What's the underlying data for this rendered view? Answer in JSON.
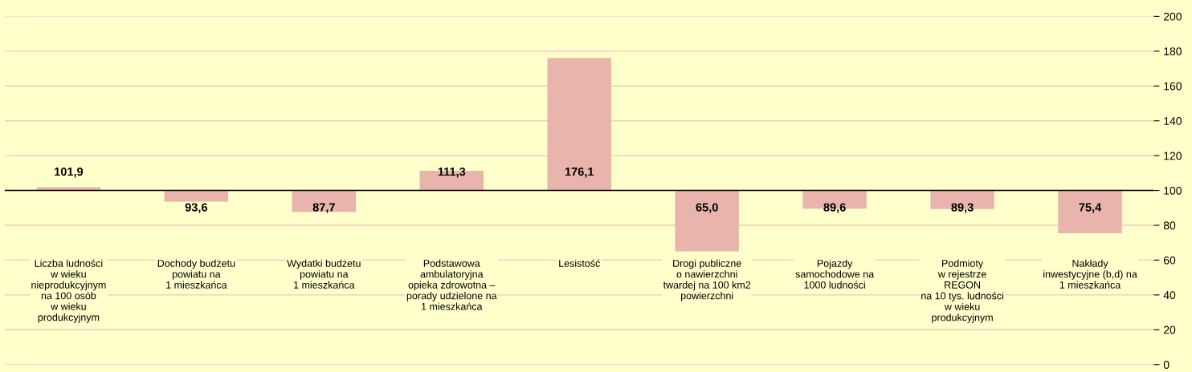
{
  "chart_data": {
    "type": "bar",
    "categories": [
      "Liczba ludności\nw wieku\nnieprodukcyjnym\nna 100 osób\nw wieku\nprodukcyjnym",
      "Dochody budżetu\npowiatu na\n1 mieszkańca",
      "Wydatki budżetu\npowiatu na\n1 mieszkańca",
      "Podstawowa\nambulatoryjna\nopieka zdrowotna –\nporady udzielone na\n1 mieszkańca",
      "Lesistość",
      "Drogi publiczne\no nawierzchni\ntwardej na 100 km2\npowierzchni",
      "Pojazdy\nsamochodowe na\n1000 ludności",
      "Podmioty\nw rejestrze\nREGON\nna 10 tys. ludności\nw wieku\nprodukcyjnym",
      "Nakłady\ninwestycyjne (b,d) na\n1 mieszkańca"
    ],
    "base": [
      100,
      100,
      100,
      100,
      100,
      100,
      100,
      100,
      100
    ],
    "values": [
      1.9,
      -6.4,
      -12.3,
      11.3,
      76.1,
      -35.0,
      -10.4,
      -10.7,
      -24.6
    ],
    "value_labels": [
      "101,9",
      "93,6",
      "87,7",
      "111,3",
      "176,1",
      "65,0",
      "89,6",
      "89,3",
      "75,4"
    ],
    "color": "#e8b4ac",
    "ylim": [
      0,
      200
    ],
    "yticks": [
      0,
      20,
      40,
      60,
      80,
      100,
      120,
      140,
      160,
      180,
      200
    ],
    "grid": "y",
    "ref_lines": [
      {
        "axis": "y",
        "value": 100,
        "color": "#000000"
      }
    ]
  }
}
